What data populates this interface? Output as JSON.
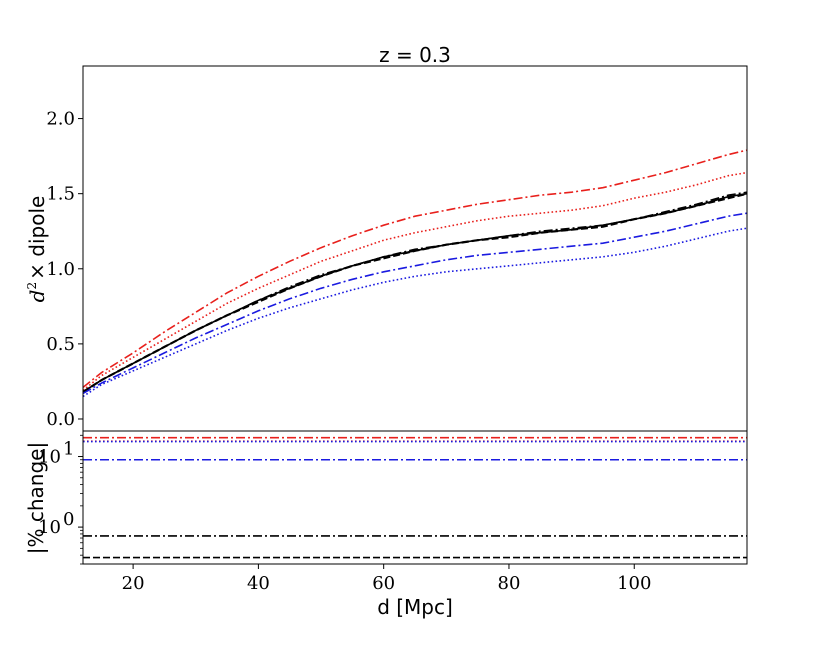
{
  "chart_data": [
    {
      "type": "line",
      "panel": "top",
      "title": "z = 0.3",
      "ylabel_math": "d",
      "ylabel_sup": "2",
      "ylabel_rest": "× dipole",
      "xlim": [
        12,
        118
      ],
      "ylim": [
        -0.08,
        2.35
      ],
      "yticks": [
        "0.0",
        "0.5",
        "1.0",
        "1.5",
        "2.0"
      ],
      "ytick_values": [
        0.0,
        0.5,
        1.0,
        1.5,
        2.0
      ],
      "grid": false,
      "x": [
        12,
        15,
        20,
        25,
        30,
        35,
        40,
        45,
        50,
        55,
        60,
        65,
        70,
        75,
        80,
        85,
        90,
        95,
        100,
        105,
        110,
        115,
        118
      ],
      "series": [
        {
          "color": "#e8201c",
          "dash": "dashdot",
          "values": [
            0.21,
            0.31,
            0.44,
            0.58,
            0.71,
            0.84,
            0.95,
            1.05,
            1.14,
            1.22,
            1.29,
            1.35,
            1.39,
            1.43,
            1.46,
            1.49,
            1.51,
            1.54,
            1.59,
            1.64,
            1.7,
            1.76,
            1.79
          ]
        },
        {
          "color": "#e8201c",
          "dash": "dotted",
          "values": [
            0.19,
            0.29,
            0.41,
            0.53,
            0.65,
            0.77,
            0.87,
            0.96,
            1.05,
            1.12,
            1.19,
            1.24,
            1.28,
            1.32,
            1.35,
            1.37,
            1.39,
            1.42,
            1.47,
            1.51,
            1.56,
            1.62,
            1.64
          ]
        },
        {
          "color": "#000000",
          "dash": "solid",
          "values": [
            0.18,
            0.26,
            0.37,
            0.48,
            0.59,
            0.69,
            0.79,
            0.87,
            0.95,
            1.02,
            1.08,
            1.12,
            1.16,
            1.19,
            1.22,
            1.24,
            1.26,
            1.29,
            1.33,
            1.37,
            1.42,
            1.48,
            1.5
          ]
        },
        {
          "color": "#000000",
          "dash": "dashed",
          "values": [
            0.18,
            0.26,
            0.37,
            0.48,
            0.59,
            0.69,
            0.78,
            0.87,
            0.95,
            1.02,
            1.07,
            1.12,
            1.16,
            1.19,
            1.21,
            1.24,
            1.26,
            1.28,
            1.33,
            1.37,
            1.42,
            1.47,
            1.5
          ]
        },
        {
          "color": "#000000",
          "dash": "dashdot",
          "values": [
            0.18,
            0.26,
            0.37,
            0.48,
            0.59,
            0.69,
            0.79,
            0.88,
            0.96,
            1.02,
            1.08,
            1.13,
            1.16,
            1.19,
            1.22,
            1.25,
            1.27,
            1.29,
            1.33,
            1.38,
            1.43,
            1.49,
            1.51
          ]
        },
        {
          "color": "#1a1ae0",
          "dash": "dashdot",
          "values": [
            0.17,
            0.24,
            0.34,
            0.44,
            0.54,
            0.63,
            0.72,
            0.8,
            0.87,
            0.93,
            0.98,
            1.02,
            1.06,
            1.09,
            1.11,
            1.13,
            1.15,
            1.17,
            1.21,
            1.25,
            1.3,
            1.35,
            1.37
          ]
        },
        {
          "color": "#1a1ae0",
          "dash": "dotted",
          "values": [
            0.15,
            0.23,
            0.32,
            0.41,
            0.5,
            0.59,
            0.67,
            0.74,
            0.8,
            0.86,
            0.91,
            0.95,
            0.98,
            1.0,
            1.02,
            1.04,
            1.06,
            1.08,
            1.11,
            1.15,
            1.2,
            1.25,
            1.27
          ]
        }
      ]
    },
    {
      "type": "line",
      "panel": "bottom",
      "xlabel": "d [Mpc]",
      "ylabel": "|% change|",
      "yscale": "log",
      "xlim": [
        12,
        118
      ],
      "ylim": [
        0.3,
        23
      ],
      "xticks": [
        "20",
        "40",
        "60",
        "80",
        "100"
      ],
      "xtick_values": [
        20,
        40,
        60,
        80,
        100
      ],
      "yticks_base": "10",
      "yticks_exp": [
        "0",
        "1"
      ],
      "ytick_values": [
        1,
        10
      ],
      "grid": false,
      "series": [
        {
          "color": "#e8201c",
          "dash": "dashdot",
          "value": 18.5
        },
        {
          "color": "#e8201c",
          "dash": "dotted",
          "value": 16.5
        },
        {
          "color": "#1a1ae0",
          "dash": "dashdot",
          "value": 9.0
        },
        {
          "color": "#1a1ae0",
          "dash": "dotted",
          "value": 16.3
        },
        {
          "color": "#000000",
          "dash": "dashdot",
          "value": 0.75
        },
        {
          "color": "#000000",
          "dash": "dashed",
          "value": 0.37
        }
      ]
    }
  ]
}
